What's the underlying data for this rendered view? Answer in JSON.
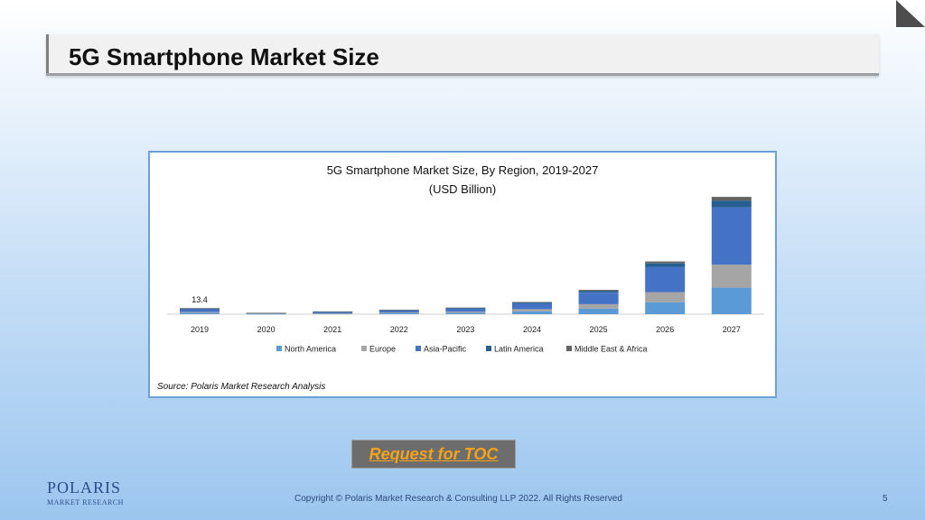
{
  "slide": {
    "title": "5G Smartphone Market Size",
    "toc_button": "Request for TOC",
    "logo_top": "POLARIS",
    "logo_bottom": "MARKET RESEARCH",
    "copyright": "Copyright © Polaris Market Research & Consulting LLP 2022. All Rights Reserved",
    "page_number": "5"
  },
  "chart_data": {
    "type": "bar",
    "stacked": true,
    "title": "5G Smartphone Market Size, By Region, 2019-2027",
    "subtitle": "(USD Billion)",
    "source": "Source: Polaris Market Research Analysis",
    "categories": [
      "2019",
      "2020",
      "2021",
      "2022",
      "2023",
      "2024",
      "2025",
      "2026",
      "2027"
    ],
    "series": [
      {
        "name": "North America",
        "color": "#5b9bd5",
        "values": [
          2.7,
          0.6,
          1.2,
          2.0,
          3.0,
          6.0,
          12.0,
          26.0,
          58.0
        ]
      },
      {
        "name": "Europe",
        "color": "#a5a5a5",
        "values": [
          2.0,
          0.5,
          1.0,
          1.5,
          2.5,
          5.0,
          10.0,
          22.0,
          50.0
        ]
      },
      {
        "name": "Asia-Pacific",
        "color": "#4472c4",
        "values": [
          6.0,
          1.4,
          2.6,
          4.5,
          6.5,
          12.0,
          25.0,
          55.0,
          125.0
        ]
      },
      {
        "name": "Latin America",
        "color": "#255e91",
        "values": [
          1.7,
          0.3,
          0.6,
          1.0,
          1.5,
          2.5,
          4.0,
          8.0,
          15.0
        ]
      },
      {
        "name": "Middle East & Africa",
        "color": "#636363",
        "values": [
          1.0,
          0.2,
          0.3,
          0.5,
          0.8,
          1.2,
          2.0,
          4.0,
          8.0
        ]
      }
    ],
    "data_labels": [
      {
        "category": "2019",
        "text": "13.4"
      }
    ],
    "ylim": [
      0,
      270
    ],
    "grid": false,
    "legend": "bottom"
  }
}
